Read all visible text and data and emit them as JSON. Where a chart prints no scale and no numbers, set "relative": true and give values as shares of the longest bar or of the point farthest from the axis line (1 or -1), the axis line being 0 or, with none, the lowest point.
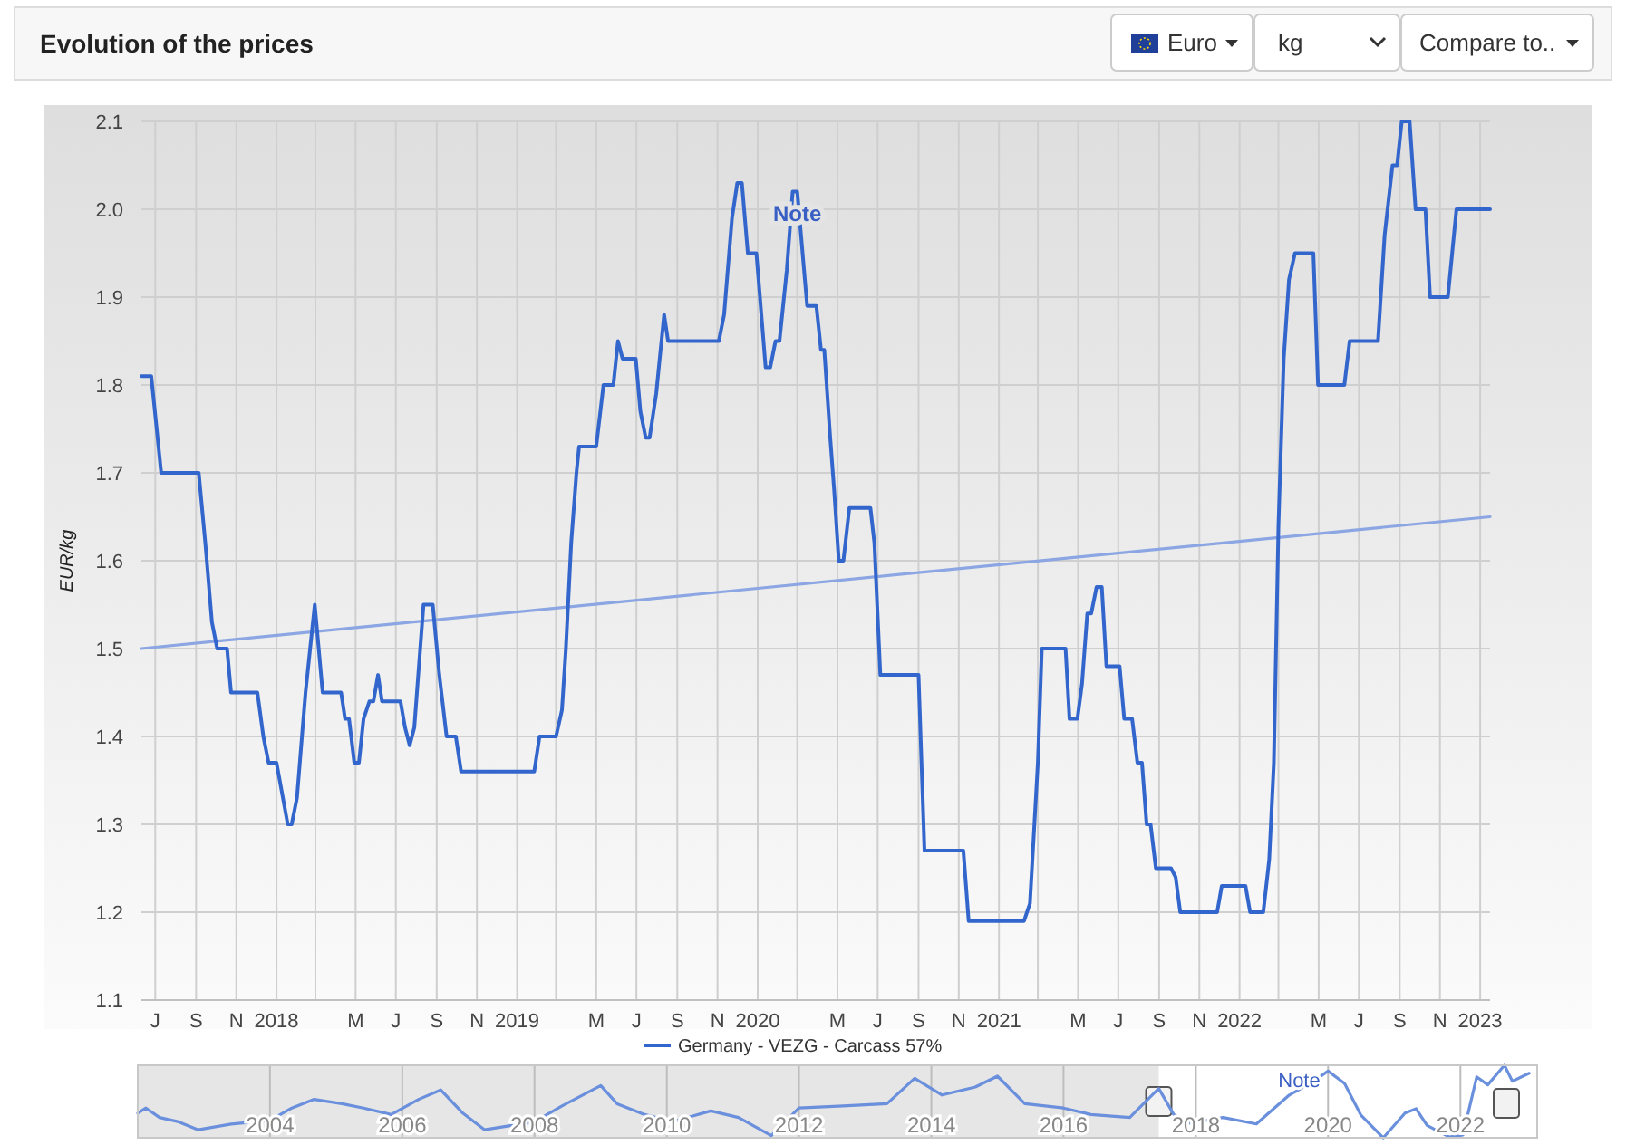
{
  "chart_data": [
    {
      "type": "line",
      "title": "Evolution of the prices",
      "ylabel": "EUR/kg",
      "annotations": [
        {
          "text": "Note",
          "x": "2020-03-01",
          "y": 2.02
        },
        "Euro",
        "kg",
        "Compare to.."
      ],
      "xlim": [
        "2017-06-10",
        "2023-01-16"
      ],
      "xticks": [
        {
          "value": "2017-07-01",
          "label": "J"
        },
        {
          "value": "2017-09-01",
          "label": "S"
        },
        {
          "value": "2017-11-01",
          "label": "N"
        },
        {
          "value": "2018-01-01",
          "label": "2018"
        },
        {
          "value": "2018-03-01",
          "label": null
        },
        {
          "value": "2018-05-01",
          "label": "M"
        },
        {
          "value": "2018-07-01",
          "label": "J"
        },
        {
          "value": "2018-09-01",
          "label": "S"
        },
        {
          "value": "2018-11-01",
          "label": "N"
        },
        {
          "value": "2019-01-01",
          "label": "2019"
        },
        {
          "value": "2019-03-01",
          "label": null
        },
        {
          "value": "2019-05-01",
          "label": "M"
        },
        {
          "value": "2019-07-01",
          "label": "J"
        },
        {
          "value": "2019-09-01",
          "label": "S"
        },
        {
          "value": "2019-11-01",
          "label": "N"
        },
        {
          "value": "2020-01-01",
          "label": "2020"
        },
        {
          "value": "2020-03-01",
          "label": null
        },
        {
          "value": "2020-05-01",
          "label": "M"
        },
        {
          "value": "2020-07-01",
          "label": "J"
        },
        {
          "value": "2020-09-01",
          "label": "S"
        },
        {
          "value": "2020-11-01",
          "label": "N"
        },
        {
          "value": "2021-01-01",
          "label": "2021"
        },
        {
          "value": "2021-03-01",
          "label": null
        },
        {
          "value": "2021-05-01",
          "label": "M"
        },
        {
          "value": "2021-07-01",
          "label": "J"
        },
        {
          "value": "2021-09-01",
          "label": "S"
        },
        {
          "value": "2021-11-01",
          "label": "N"
        },
        {
          "value": "2022-01-01",
          "label": "2022"
        },
        {
          "value": "2022-03-01",
          "label": null
        },
        {
          "value": "2022-05-01",
          "label": "M"
        },
        {
          "value": "2022-07-01",
          "label": "J"
        },
        {
          "value": "2022-09-01",
          "label": "S"
        },
        {
          "value": "2022-11-01",
          "label": "N"
        },
        {
          "value": "2023-01-01",
          "label": "2023"
        }
      ],
      "ylim": [
        1.1,
        2.1
      ],
      "yticks": [
        1.1,
        1.2,
        1.3,
        1.4,
        1.5,
        1.6,
        1.7,
        1.8,
        1.9,
        {
          "value": 2,
          "label": "2.0"
        },
        2.1
      ],
      "grid": true,
      "legend": "bottom",
      "series": [
        {
          "name": "Germany - VEZG - Carcass 57%",
          "color": "#3366cc",
          "x": [
            "2017-06-10",
            "2017-06-25",
            "2017-07-10",
            "2017-09-05",
            "2017-09-15",
            "2017-09-25",
            "2017-10-03",
            "2017-10-18",
            "2017-10-24",
            "2017-12-03",
            "2017-12-12",
            "2017-12-20",
            "2018-01-01",
            "2018-01-18",
            "2018-01-24",
            "2018-02-01",
            "2018-02-14",
            "2018-02-28",
            "2018-03-12",
            "2018-04-09",
            "2018-04-15",
            "2018-04-21",
            "2018-04-29",
            "2018-05-06",
            "2018-05-13",
            "2018-05-22",
            "2018-05-28",
            "2018-06-04",
            "2018-06-10",
            "2018-07-08",
            "2018-07-15",
            "2018-07-22",
            "2018-07-29",
            "2018-08-12",
            "2018-08-26",
            "2018-09-05",
            "2018-09-16",
            "2018-09-30",
            "2018-10-08",
            "2019-01-27",
            "2019-02-04",
            "2019-03-01",
            "2019-03-10",
            "2019-03-16",
            "2019-03-24",
            "2019-04-01",
            "2019-04-05",
            "2019-05-01",
            "2019-05-12",
            "2019-05-27",
            "2019-06-03",
            "2019-06-10",
            "2019-06-30",
            "2019-07-07",
            "2019-07-15",
            "2019-07-21",
            "2019-07-31",
            "2019-08-12",
            "2019-08-18",
            "2019-11-03",
            "2019-11-11",
            "2019-11-23",
            "2019-12-01",
            "2019-12-08",
            "2019-12-17",
            "2019-12-30",
            "2020-01-13",
            "2020-01-20",
            "2020-01-28",
            "2020-02-03",
            "2020-02-14",
            "2020-02-23",
            "2020-03-01",
            "2020-03-16",
            "2020-03-30",
            "2020-04-06",
            "2020-04-11",
            "2020-04-20",
            "2020-04-26",
            "2020-05-03",
            "2020-05-10",
            "2020-05-19",
            "2020-06-20",
            "2020-06-26",
            "2020-07-05",
            "2020-09-01",
            "2020-09-10",
            "2020-11-08",
            "2020-11-16",
            "2021-02-08",
            "2021-02-17",
            "2021-03-01",
            "2021-03-07",
            "2021-04-12",
            "2021-04-18",
            "2021-04-30",
            "2021-05-07",
            "2021-05-15",
            "2021-05-21",
            "2021-05-29",
            "2021-06-06",
            "2021-06-13",
            "2021-07-03",
            "2021-07-10",
            "2021-07-22",
            "2021-07-30",
            "2021-08-06",
            "2021-08-13",
            "2021-08-19",
            "2021-08-27",
            "2021-09-19",
            "2021-09-26",
            "2021-10-03",
            "2021-11-28",
            "2021-12-05",
            "2022-01-10",
            "2022-01-17",
            "2022-02-06",
            "2022-02-15",
            "2022-02-22",
            "2022-03-01",
            "2022-03-09",
            "2022-03-17",
            "2022-03-26",
            "2022-04-23",
            "2022-04-30",
            "2022-06-09",
            "2022-06-17",
            "2022-07-30",
            "2022-08-09",
            "2022-08-21",
            "2022-08-28",
            "2022-09-04",
            "2022-09-16",
            "2022-09-25",
            "2022-10-10",
            "2022-10-17",
            "2022-11-13",
            "2022-11-26",
            "2023-01-16"
          ],
          "values": [
            1.81,
            1.81,
            1.7,
            1.7,
            1.62,
            1.53,
            1.5,
            1.5,
            1.45,
            1.45,
            1.4,
            1.37,
            1.37,
            1.3,
            1.3,
            1.33,
            1.45,
            1.55,
            1.45,
            1.45,
            1.42,
            1.42,
            1.37,
            1.37,
            1.42,
            1.44,
            1.44,
            1.47,
            1.44,
            1.44,
            1.41,
            1.39,
            1.41,
            1.55,
            1.55,
            1.47,
            1.4,
            1.4,
            1.36,
            1.36,
            1.4,
            1.4,
            1.43,
            1.5,
            1.62,
            1.7,
            1.73,
            1.73,
            1.8,
            1.8,
            1.85,
            1.83,
            1.83,
            1.77,
            1.74,
            1.74,
            1.79,
            1.88,
            1.85,
            1.85,
            1.88,
            1.99,
            2.03,
            2.03,
            1.95,
            1.95,
            1.82,
            1.82,
            1.85,
            1.85,
            1.93,
            2.02,
            2.02,
            1.89,
            1.89,
            1.84,
            1.84,
            1.74,
            1.68,
            1.6,
            1.6,
            1.66,
            1.66,
            1.62,
            1.47,
            1.47,
            1.27,
            1.27,
            1.19,
            1.19,
            1.21,
            1.37,
            1.5,
            1.5,
            1.42,
            1.42,
            1.46,
            1.54,
            1.54,
            1.57,
            1.57,
            1.48,
            1.48,
            1.42,
            1.42,
            1.37,
            1.37,
            1.3,
            1.3,
            1.25,
            1.25,
            1.24,
            1.2,
            1.2,
            1.23,
            1.23,
            1.2,
            1.2,
            1.26,
            1.37,
            1.64,
            1.83,
            1.92,
            1.95,
            1.95,
            1.8,
            1.8,
            1.85,
            1.85,
            1.97,
            2.05,
            2.05,
            2.1,
            2.1,
            2.0,
            2.0,
            1.9,
            1.9,
            2.0,
            2.0
          ]
        },
        {
          "type": "line",
          "color": "#8ca6e3",
          "x": [
            "2017-06-10",
            "2023-01-16"
          ],
          "values": [
            1.5,
            1.65
          ]
        }
      ]
    },
    {
      "type": "line",
      "relative": true,
      "annotations": [
        "Note"
      ],
      "xlim": [
        "2002-01-01",
        "2023-03-01"
      ],
      "xticks": [
        {
          "value": "2004-01-01",
          "label": "2004"
        },
        {
          "value": "2006-01-01",
          "label": "2006"
        },
        {
          "value": "2008-01-01",
          "label": "2008"
        },
        {
          "value": "2010-01-01",
          "label": "2010"
        },
        {
          "value": "2012-01-01",
          "label": "2012"
        },
        {
          "value": "2014-01-01",
          "label": "2014"
        },
        {
          "value": "2016-01-01",
          "label": "2016"
        },
        {
          "value": "2018-01-01",
          "label": "2018"
        },
        {
          "value": "2020-01-01",
          "label": "2020"
        },
        {
          "value": "2022-01-01",
          "label": "2022"
        }
      ],
      "grid": "x",
      "bands": [
        {
          "axis": "x",
          "from": "2002-01-01",
          "to": "2017-06-10",
          "color": "#e6e6e6"
        }
      ],
      "series": [
        {
          "color": "#6a8fdc",
          "x": [
            "2002-01-01",
            "2002-02-15",
            "2002-05-01",
            "2002-08-15",
            "2002-12-01",
            "2003-06-01",
            "2004-01-01",
            "2004-05-01",
            "2004-09-01",
            "2005-02-01",
            "2005-06-01",
            "2005-11-01",
            "2006-04-01",
            "2006-08-01",
            "2006-12-01",
            "2007-04-01",
            "2008-01-01",
            "2008-06-01",
            "2009-01-01",
            "2009-04-01",
            "2009-09-01",
            "2010-02-01",
            "2010-09-01",
            "2011-02-01",
            "2011-08-01",
            "2012-01-01",
            "2012-09-01",
            "2013-05-01",
            "2013-10-01",
            "2014-03-01",
            "2014-09-01",
            "2015-01-01",
            "2015-06-01",
            "2016-01-01",
            "2016-06-01",
            "2017-01-01",
            "2017-06-10",
            "2017-09-01",
            "2017-12-01",
            "2018-06-01",
            "2018-12-01",
            "2019-06-01",
            "2019-10-01",
            "2020-01-01",
            "2020-04-01",
            "2020-07-01",
            "2020-11-01",
            "2021-03-01",
            "2021-05-01",
            "2021-07-01",
            "2021-11-01",
            "2022-01-15",
            "2022-04-01",
            "2022-06-01",
            "2022-09-01",
            "2022-10-15",
            "2023-01-16"
          ],
          "values": [
            0.34,
            0.41,
            0.28,
            0.22,
            0.11,
            0.19,
            0.24,
            0.41,
            0.53,
            0.47,
            0.41,
            0.32,
            0.53,
            0.66,
            0.34,
            0.11,
            0.22,
            0.44,
            0.72,
            0.47,
            0.32,
            0.22,
            0.37,
            0.28,
            0.03,
            0.41,
            0.44,
            0.47,
            0.82,
            0.59,
            0.7,
            0.85,
            0.47,
            0.41,
            0.32,
            0.28,
            0.68,
            0.32,
            0.2,
            0.28,
            0.19,
            0.59,
            0.76,
            0.92,
            0.75,
            0.31,
            0.0,
            0.34,
            0.4,
            0.17,
            0.01,
            0.04,
            0.84,
            0.73,
            1,
            0.78,
            0.89
          ]
        }
      ]
    }
  ]
}
